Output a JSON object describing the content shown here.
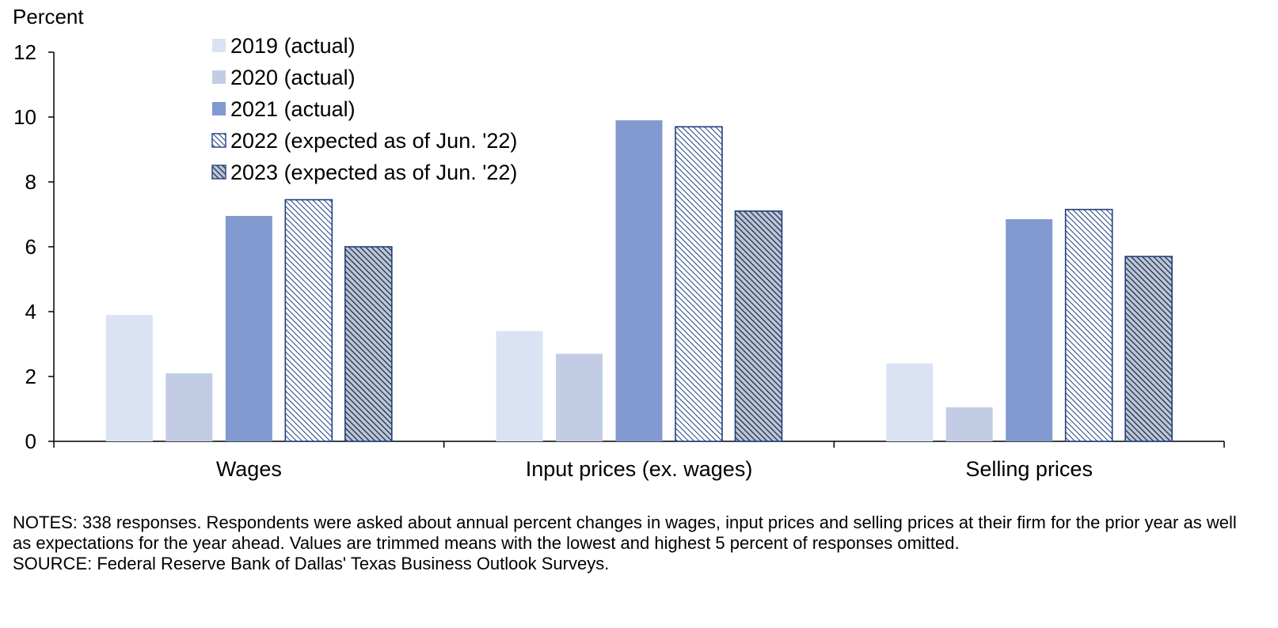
{
  "chart_data": {
    "type": "bar",
    "ylabel": "Percent",
    "ylim": [
      0,
      12
    ],
    "yticks": [
      0,
      2,
      4,
      6,
      8,
      10,
      12
    ],
    "grid": false,
    "legend_position": "top-left",
    "categories": [
      "Wages",
      "Input prices (ex. wages)",
      "Selling prices"
    ],
    "series": [
      {
        "name": "2019 (actual)",
        "values": [
          3.9,
          3.4,
          2.4
        ],
        "color": "#dae3f3",
        "pattern": "solid"
      },
      {
        "name": "2020 (actual)",
        "values": [
          2.1,
          2.7,
          1.05
        ],
        "color": "#c2cde5",
        "pattern": "solid"
      },
      {
        "name": "2021 (actual)",
        "values": [
          6.95,
          9.9,
          6.85
        ],
        "color": "#8199cf",
        "pattern": "solid"
      },
      {
        "name": "2022 (expected as of Jun. '22)",
        "values": [
          7.45,
          9.7,
          7.15
        ],
        "color": "#1f3f7f",
        "pattern": "hatch-light"
      },
      {
        "name": "2023 (expected as of Jun. '22)",
        "values": [
          6.0,
          7.1,
          5.7
        ],
        "color": "#1f3f7f",
        "pattern": "hatch-dark"
      }
    ]
  },
  "notes": {
    "line1": "NOTES: 338 responses. Respondents were asked about annual percent changes in wages, input prices and selling prices at their firm for the prior year as well as expectations for the year ahead. Values are trimmed means with the lowest and highest 5 percent of responses omitted.",
    "source": "SOURCE: Federal Reserve Bank of Dallas' Texas Business Outlook Surveys."
  }
}
